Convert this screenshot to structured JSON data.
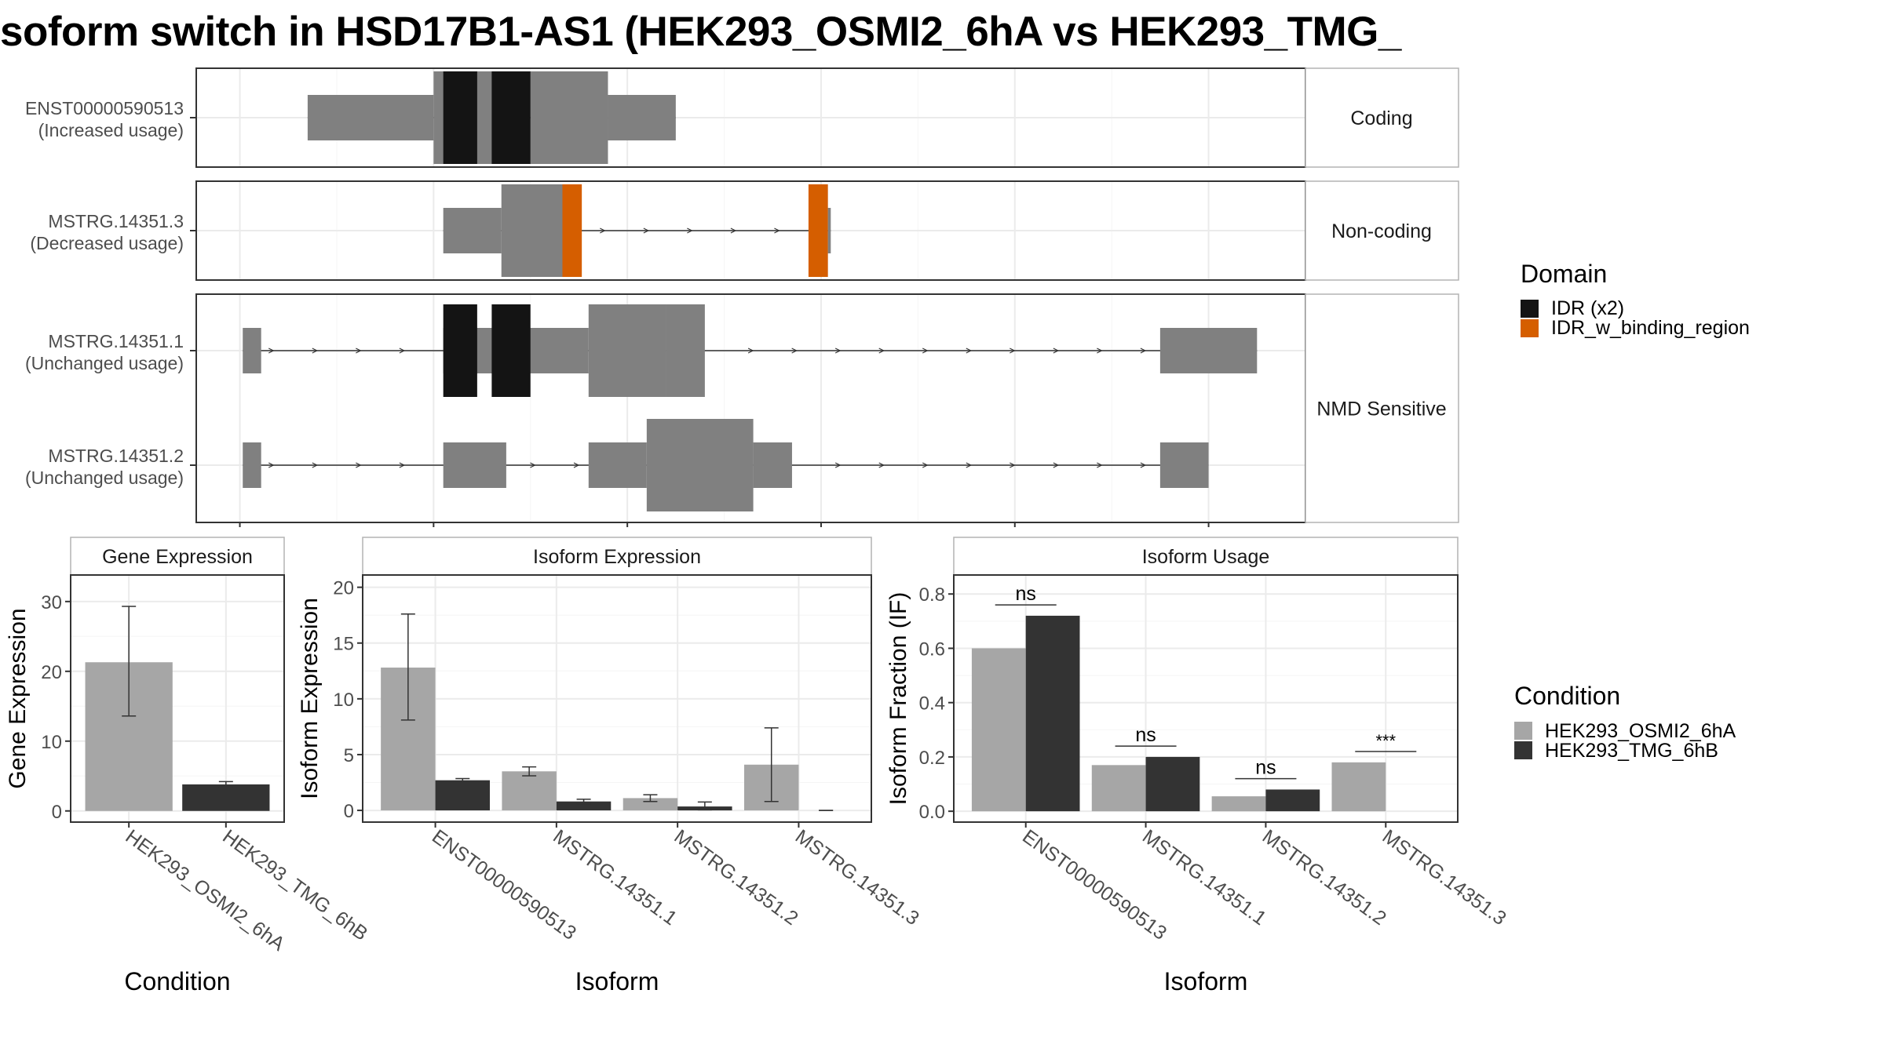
{
  "title": "soform switch in HSD17B1-AS1 (HEK293_OSMI2_6hA vs HEK293_TMG_",
  "colors": {
    "cond_a": "#a6a6a6",
    "cond_b": "#333333",
    "exon": "#808080",
    "idr": "#141414",
    "idr_binding": "#d55e00"
  },
  "legends": {
    "domain": {
      "title": "Domain",
      "items": [
        {
          "label": "IDR (x2)",
          "color": "#141414"
        },
        {
          "label": "IDR_w_binding_region",
          "color": "#d55e00"
        }
      ]
    },
    "condition": {
      "title": "Condition",
      "items": [
        {
          "label": "HEK293_OSMI2_6hA",
          "color": "#a6a6a6"
        },
        {
          "label": "HEK293_TMG_6hB",
          "color": "#333333"
        }
      ]
    }
  },
  "chart_data": [
    {
      "type": "isoform-structure",
      "panels": [
        {
          "strip": "Coding",
          "isoforms": [
            {
              "label": "ENST00000590513\n(Increased usage)",
              "exons": [
                [
                  0.2,
                  1.5
                ],
                [
                  1.5,
                  2.3
                ],
                [
                  2.3,
                  2.5
                ],
                [
                  2.5,
                  3.3
                ],
                [
                  3.3,
                  4.0
                ]
              ],
              "exon_size": [
                "small",
                "large",
                "large",
                "large",
                "small"
              ],
              "domains": [
                {
                  "start": 1.6,
                  "end": 1.95,
                  "type": "IDR"
                },
                {
                  "start": 2.1,
                  "end": 2.5,
                  "type": "IDR"
                }
              ]
            }
          ]
        },
        {
          "strip": "Non-coding",
          "isoforms": [
            {
              "label": "MSTRG.14351.3\n(Decreased usage)",
              "exons": [
                [
                  1.6,
                  2.2
                ],
                [
                  2.2,
                  2.95
                ],
                [
                  2.95,
                  3.0
                ],
                [
                  3.0,
                  5.4
                ],
                [
                  5.4,
                  5.57
                ],
                [
                  5.57,
                  5.6
                ]
              ],
              "exon_size": [
                "small",
                "large",
                "large",
                "intron",
                "large",
                "small"
              ],
              "domains": [
                {
                  "start": 2.83,
                  "end": 3.03,
                  "type": "IDR_w_binding_region"
                },
                {
                  "start": 5.37,
                  "end": 5.57,
                  "type": "IDR_w_binding_region"
                }
              ]
            }
          ]
        },
        {
          "strip": "NMD Sensitive",
          "isoforms": [
            {
              "label": "MSTRG.14351.1\n(Unchanged usage)",
              "exons": [
                [
                  -0.47,
                  -0.28
                ],
                [
                  1.6,
                  3.1
                ],
                [
                  3.1,
                  3.9
                ],
                [
                  3.9,
                  4.3
                ],
                [
                  9.0,
                  10.0
                ]
              ],
              "exon_size": [
                "small",
                "small",
                "large",
                "large",
                "small"
              ],
              "domains": [
                {
                  "start": 1.6,
                  "end": 1.95,
                  "type": "IDR"
                },
                {
                  "start": 2.1,
                  "end": 2.5,
                  "type": "IDR"
                }
              ]
            },
            {
              "label": "MSTRG.14351.2\n(Unchanged usage)",
              "exons": [
                [
                  -0.47,
                  -0.28
                ],
                [
                  1.6,
                  2.25
                ],
                [
                  3.1,
                  3.7
                ],
                [
                  3.7,
                  4.8
                ],
                [
                  4.8,
                  5.2
                ],
                [
                  9.0,
                  9.5
                ]
              ],
              "exon_size": [
                "small",
                "small",
                "small",
                "large",
                "small",
                "small"
              ],
              "domains": []
            }
          ]
        }
      ],
      "legend": [
        "IDR (x2)",
        "IDR_w_binding_region"
      ]
    },
    {
      "type": "bar",
      "strip": "Gene Expression",
      "xlabel": "Condition",
      "ylabel": "Gene Expression",
      "categories": [
        "HEK293_OSMI2_6hA",
        "HEK293_TMG_6hB"
      ],
      "values": [
        21.3,
        3.8
      ],
      "errors": [
        [
          13.6,
          29.3
        ],
        [
          3.4,
          4.2
        ]
      ],
      "yticks": [
        0,
        10,
        20,
        30
      ],
      "ylim": [
        -1.6,
        33.8
      ]
    },
    {
      "type": "bar",
      "strip": "Isoform Expression",
      "xlabel": "Isoform",
      "ylabel": "Isoform Expression",
      "categories": [
        "ENST00000590513",
        "MSTRG.14351.1",
        "MSTRG.14351.2",
        "MSTRG.14351.3"
      ],
      "series": [
        {
          "name": "HEK293_OSMI2_6hA",
          "values": [
            12.8,
            3.5,
            1.1,
            4.1
          ],
          "errors": [
            [
              8.1,
              17.6
            ],
            [
              3.1,
              3.9
            ],
            [
              0.8,
              1.4
            ],
            [
              0.8,
              7.4
            ]
          ]
        },
        {
          "name": "HEK293_TMG_6hB",
          "values": [
            2.7,
            0.8,
            0.35,
            0.0
          ],
          "errors": [
            [
              2.55,
              2.85
            ],
            [
              0.6,
              1.0
            ],
            [
              0.05,
              0.75
            ],
            [
              0.0,
              0.0
            ]
          ]
        }
      ],
      "yticks": [
        0,
        5,
        10,
        15,
        20
      ],
      "ylim": [
        -1.05,
        21.1
      ]
    },
    {
      "type": "bar",
      "strip": "Isoform Usage",
      "xlabel": "Isoform",
      "ylabel": "Isoform Fraction (IF)",
      "categories": [
        "ENST00000590513",
        "MSTRG.14351.1",
        "MSTRG.14351.2",
        "MSTRG.14351.3"
      ],
      "series": [
        {
          "name": "HEK293_OSMI2_6hA",
          "values": [
            0.6,
            0.17,
            0.055,
            0.18
          ]
        },
        {
          "name": "HEK293_TMG_6hB",
          "values": [
            0.72,
            0.2,
            0.08,
            0.0
          ]
        }
      ],
      "significance": [
        {
          "label": "ns",
          "y": 0.76
        },
        {
          "label": "ns",
          "y": 0.24
        },
        {
          "label": "ns",
          "y": 0.12
        },
        {
          "label": "***",
          "y": 0.22
        }
      ],
      "yticks": [
        0.0,
        0.2,
        0.4,
        0.6,
        0.8
      ],
      "ylim": [
        -0.04,
        0.87
      ]
    }
  ]
}
